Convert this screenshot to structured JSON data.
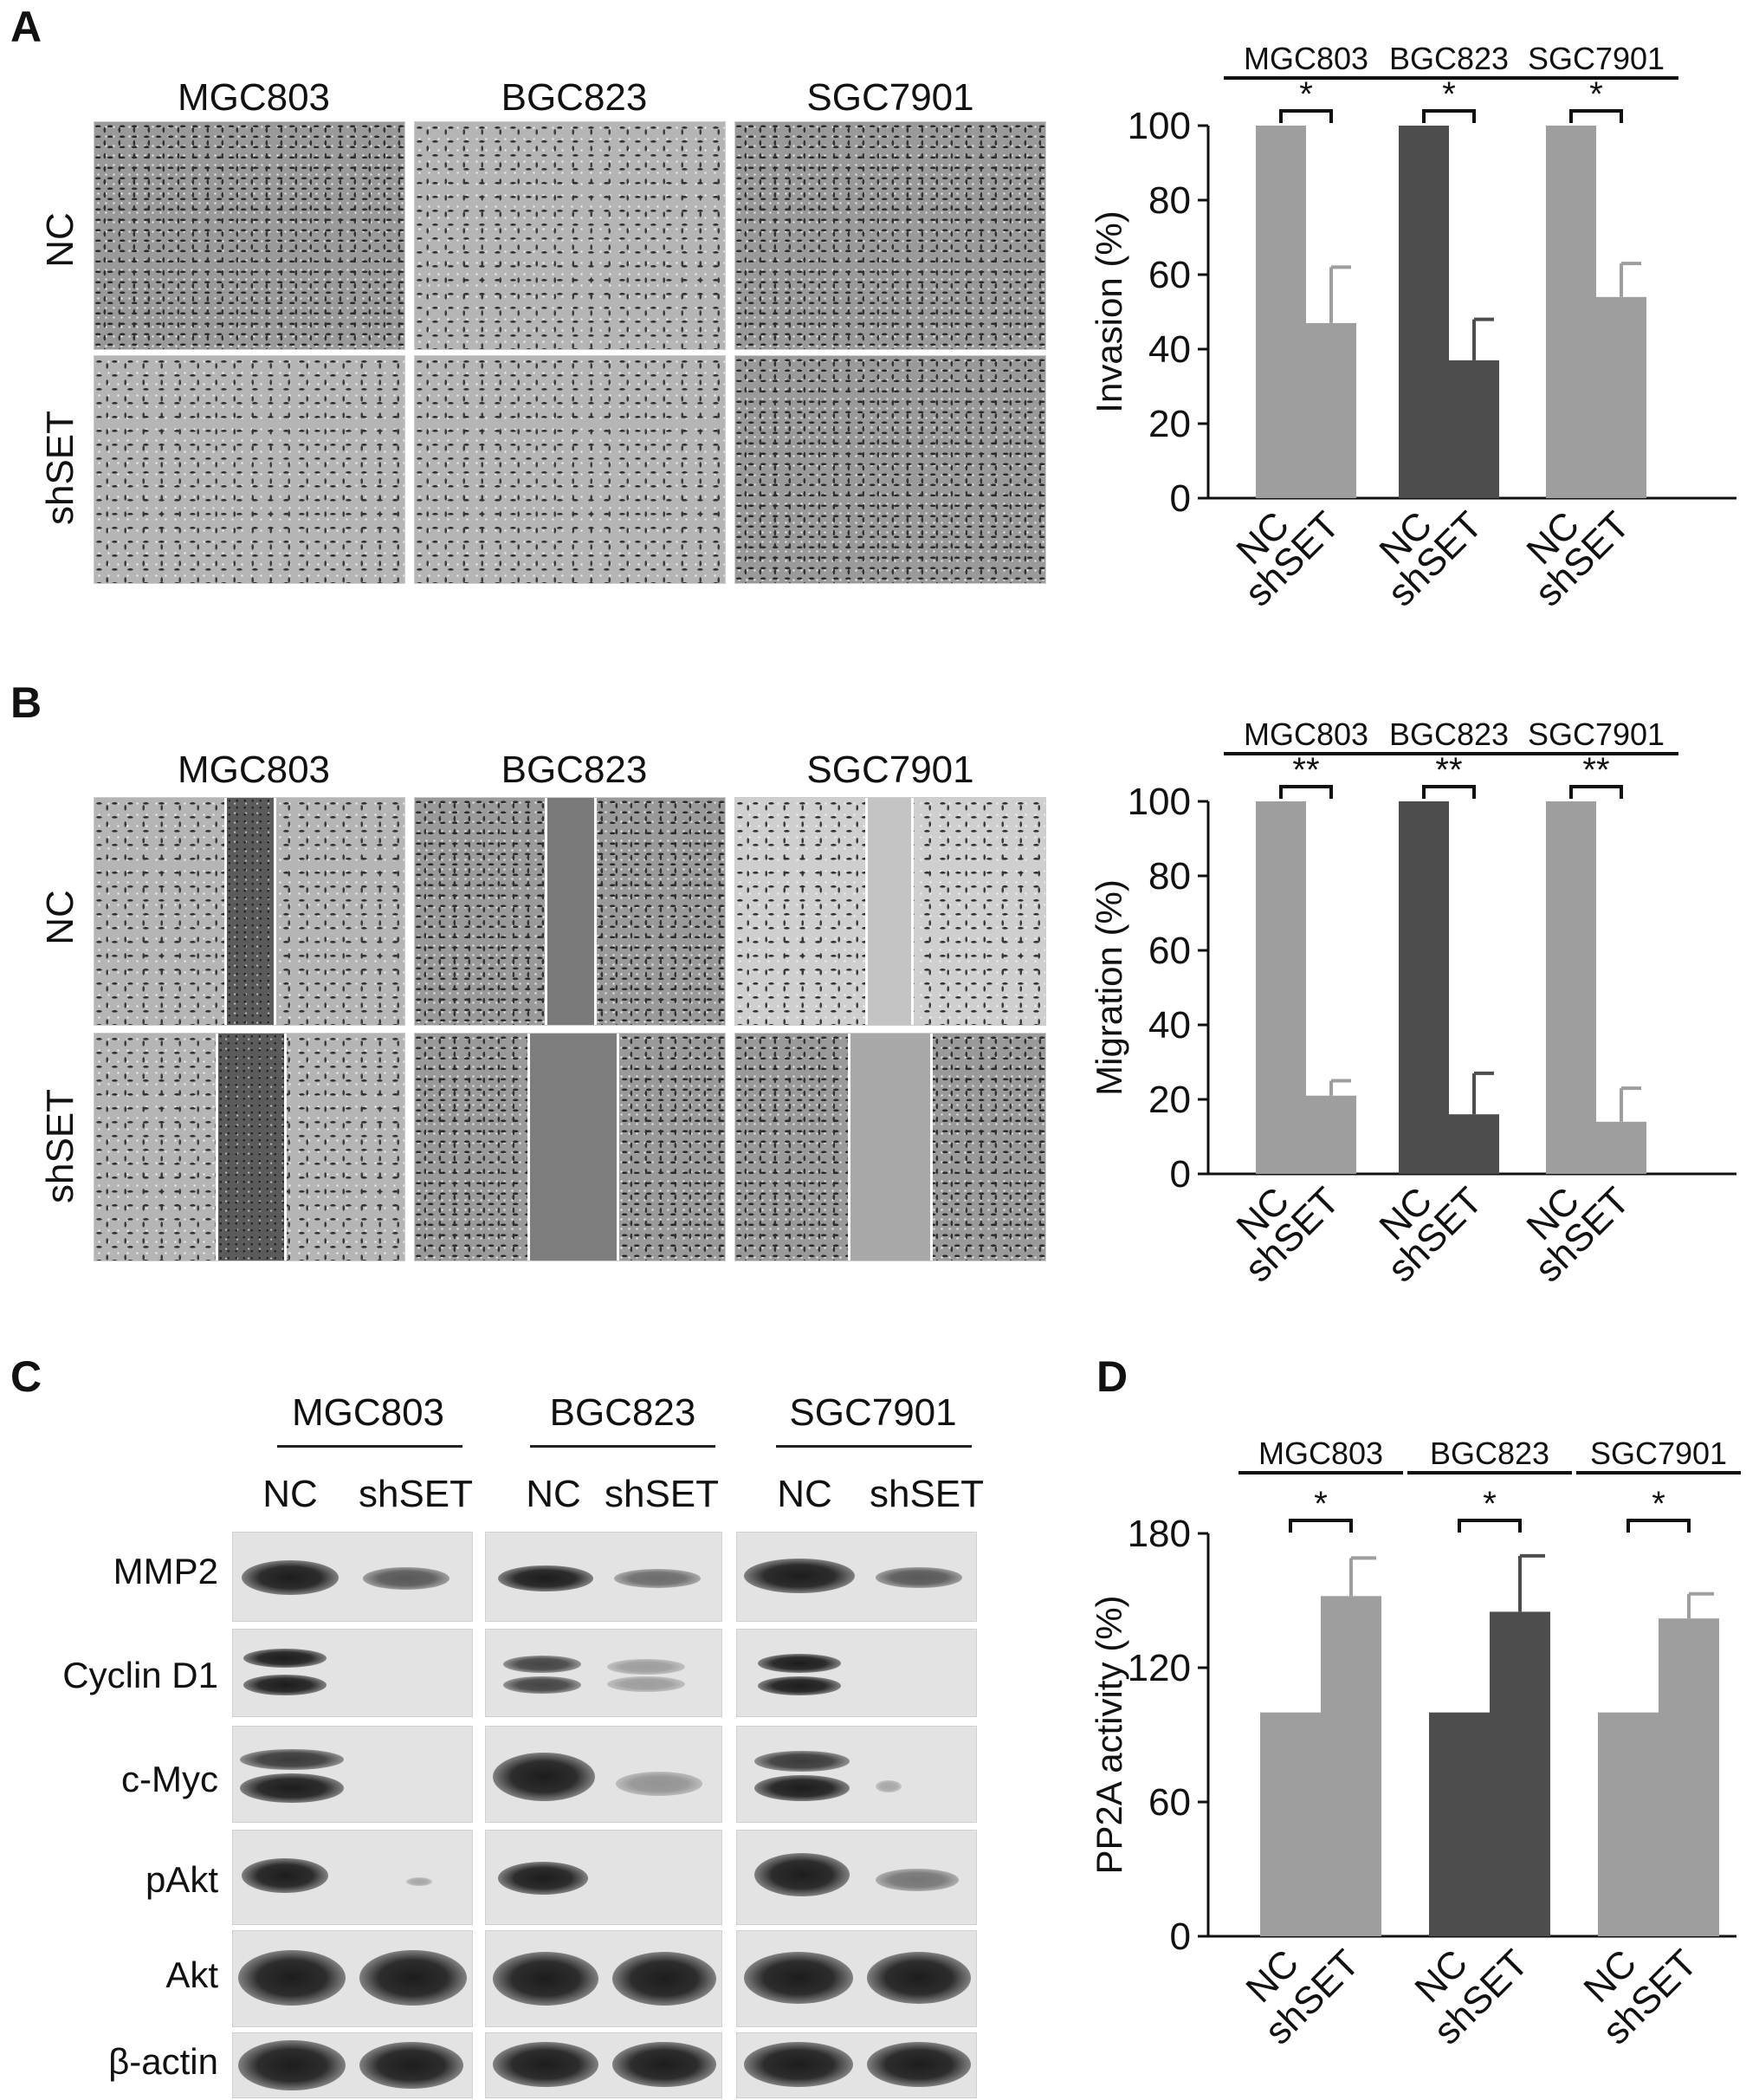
{
  "panel_letters": {
    "a": "A",
    "b": "B",
    "c": "C",
    "d": "D"
  },
  "cell_lines": [
    "MGC803",
    "BGC823",
    "SGC7901"
  ],
  "row_labels": [
    "NC",
    "shSET"
  ],
  "blot": {
    "lanes": [
      "NC",
      "shSET"
    ],
    "proteins": [
      "MMP2",
      "Cyclin D1",
      "c-Myc",
      "pAkt",
      "Akt",
      "β-actin"
    ]
  },
  "colors": {
    "light_bar": "#9e9e9e",
    "dark_bar": "#4d4d4d",
    "axis": "#111111"
  },
  "chart_data": [
    {
      "id": "A",
      "type": "bar",
      "ylabel": "Invasion (%)",
      "ylim": [
        0,
        100
      ],
      "yticks": [
        0,
        20,
        40,
        60,
        80,
        100
      ],
      "groups": [
        {
          "name": "MGC803",
          "categories": [
            "NC",
            "shSET"
          ],
          "values": [
            100,
            47
          ],
          "errors": [
            0,
            15
          ],
          "sig": "*",
          "color": "light"
        },
        {
          "name": "BGC823",
          "categories": [
            "NC",
            "shSET"
          ],
          "values": [
            100,
            37
          ],
          "errors": [
            0,
            11
          ],
          "sig": "*",
          "color": "dark"
        },
        {
          "name": "SGC7901",
          "categories": [
            "NC",
            "shSET"
          ],
          "values": [
            100,
            54
          ],
          "errors": [
            0,
            9
          ],
          "sig": "*",
          "color": "light"
        }
      ]
    },
    {
      "id": "B",
      "type": "bar",
      "ylabel": "Migration (%)",
      "ylim": [
        0,
        100
      ],
      "yticks": [
        0,
        20,
        40,
        60,
        80,
        100
      ],
      "groups": [
        {
          "name": "MGC803",
          "categories": [
            "NC",
            "shSET"
          ],
          "values": [
            100,
            21
          ],
          "errors": [
            0,
            4
          ],
          "sig": "**",
          "color": "light"
        },
        {
          "name": "BGC823",
          "categories": [
            "NC",
            "shSET"
          ],
          "values": [
            100,
            16
          ],
          "errors": [
            0,
            11
          ],
          "sig": "**",
          "color": "dark"
        },
        {
          "name": "SGC7901",
          "categories": [
            "NC",
            "shSET"
          ],
          "values": [
            100,
            14
          ],
          "errors": [
            0,
            9
          ],
          "sig": "**",
          "color": "light"
        }
      ]
    },
    {
      "id": "D",
      "type": "bar",
      "ylabel": "PP2A activity (%)",
      "ylim": [
        0,
        180
      ],
      "yticks": [
        0,
        60,
        120,
        180
      ],
      "groups": [
        {
          "name": "MGC803",
          "categories": [
            "NC",
            "shSET"
          ],
          "values": [
            100,
            152
          ],
          "errors": [
            0,
            17
          ],
          "sig": "*",
          "color": "light"
        },
        {
          "name": "BGC823",
          "categories": [
            "NC",
            "shSET"
          ],
          "values": [
            100,
            145
          ],
          "errors": [
            0,
            25
          ],
          "sig": "*",
          "color": "dark"
        },
        {
          "name": "SGC7901",
          "categories": [
            "NC",
            "shSET"
          ],
          "values": [
            100,
            142
          ],
          "errors": [
            0,
            11
          ],
          "sig": "*",
          "color": "light"
        }
      ]
    }
  ]
}
